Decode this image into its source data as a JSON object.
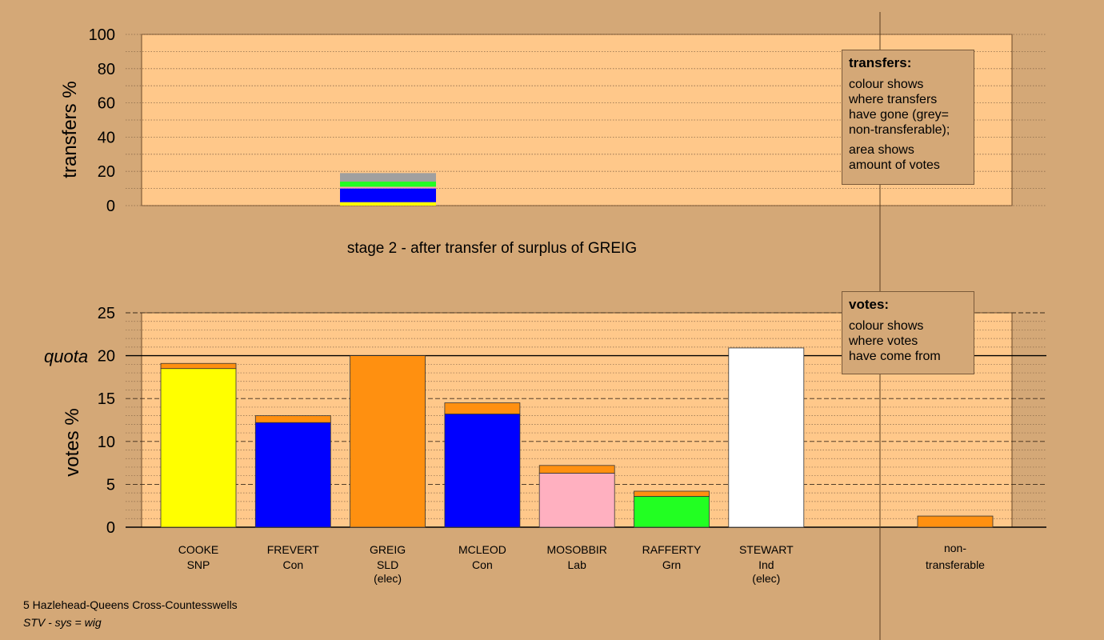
{
  "chart_data": [
    {
      "type": "bar",
      "title": "stage 2 - after transfer of surplus of GREIG",
      "ylabel": "transfers %",
      "ylim": [
        0,
        100
      ],
      "yticks": [
        0,
        20,
        40,
        60,
        80,
        100
      ],
      "grid": true,
      "stacked_segments": [
        {
          "party_color": "#ffff00",
          "value": 2
        },
        {
          "party_color": "#0000ff",
          "value": 8
        },
        {
          "party_color": "#ffa0b4",
          "value": 1
        },
        {
          "party_color": "#22ff22",
          "value": 3
        },
        {
          "party_color": "#a0a0a0",
          "value": 5
        }
      ]
    },
    {
      "type": "bar",
      "ylabel": "votes %",
      "ylim": [
        0,
        25
      ],
      "yticks": [
        0,
        5,
        10,
        15,
        20,
        25
      ],
      "quota": 20,
      "quota_label": "quota",
      "grid": true,
      "categories": [
        {
          "name": "COOKE",
          "party": "SNP",
          "elec": "",
          "base": 18.5,
          "transfer": 0.6,
          "color": "#ffff00"
        },
        {
          "name": "FREVERT",
          "party": "Con",
          "elec": "",
          "base": 12.2,
          "transfer": 0.8,
          "color": "#0000ff"
        },
        {
          "name": "GREIG",
          "party": "SLD",
          "elec": "(elec)",
          "base": 20.0,
          "transfer": 0,
          "color": "#ff9010"
        },
        {
          "name": "MCLEOD",
          "party": "Con",
          "elec": "",
          "base": 13.2,
          "transfer": 1.3,
          "color": "#0000ff"
        },
        {
          "name": "MOSOBBIR",
          "party": "Lab",
          "elec": "",
          "base": 6.3,
          "transfer": 0.9,
          "color": "#ffb0c0"
        },
        {
          "name": "RAFFERTY",
          "party": "Grn",
          "elec": "",
          "base": 3.6,
          "transfer": 0.6,
          "color": "#22ff22"
        },
        {
          "name": "STEWART",
          "party": "Ind",
          "elec": "(elec)",
          "base": 20.9,
          "transfer": 0,
          "color": "#ffffff"
        }
      ],
      "nontransferable": {
        "label_line1": "non-",
        "label_line2": "transferable",
        "value": 1.3,
        "color": "#ff9010"
      },
      "transfer_color": "#ff9010"
    }
  ],
  "legend_transfers": {
    "heading": "transfers:",
    "text1_lines": [
      "colour shows",
      "where transfers",
      "have gone (grey=",
      "non-transferable);"
    ],
    "text2_lines": [
      "area shows",
      "amount of votes"
    ]
  },
  "legend_votes": {
    "heading": "votes:",
    "text_lines": [
      "colour shows",
      "where votes",
      "have come from"
    ]
  },
  "footer": {
    "ward": "5 Hazlehead-Queens Cross-Countesswells",
    "system": "STV - sys = wig"
  }
}
